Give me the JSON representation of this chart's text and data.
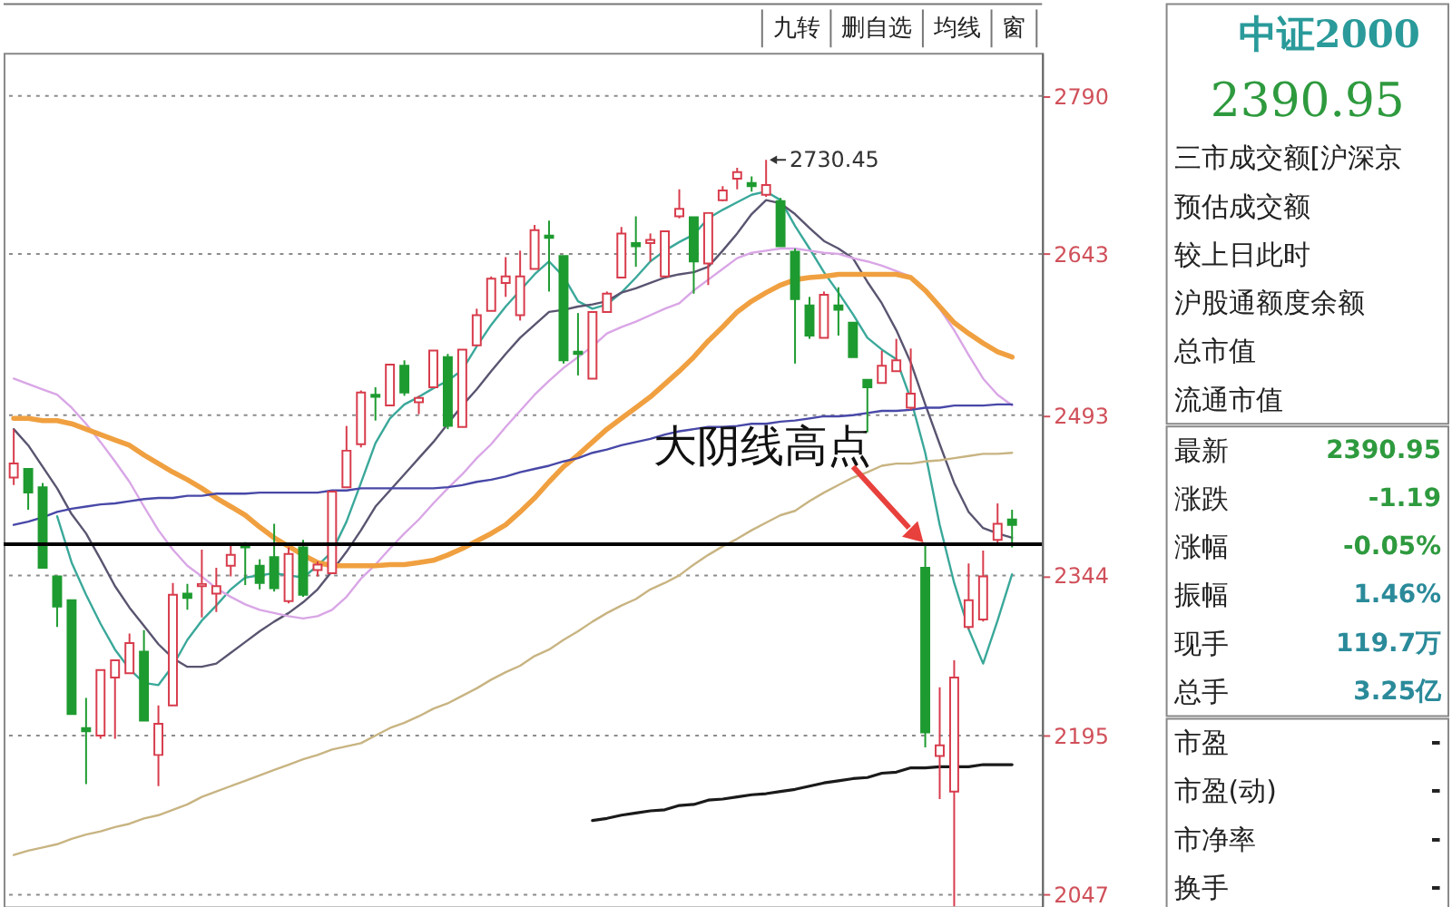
{
  "chart_data": [
    {
      "type": "candlestick",
      "categories": [
        null,
        null,
        null,
        null,
        null,
        null,
        null,
        null,
        null,
        null,
        null,
        null,
        null,
        null,
        null,
        null,
        null,
        null,
        null,
        null,
        null,
        null,
        null,
        null,
        null,
        null,
        null,
        null,
        null,
        null,
        null,
        null,
        null,
        null,
        null,
        null,
        null,
        null,
        null,
        null,
        null,
        null,
        null,
        null,
        null,
        null,
        null,
        null,
        null,
        null,
        null,
        null,
        null,
        null,
        null,
        null,
        null,
        null,
        null,
        null,
        null,
        null,
        null,
        null,
        null,
        null,
        null,
        null,
        null,
        null
      ],
      "ohlc": [
        [
          2435,
          2480,
          2428,
          2448
        ],
        [
          2443,
          2443,
          2405,
          2421
        ],
        [
          2426,
          2430,
          2351,
          2351
        ],
        [
          2343,
          2343,
          2296,
          2315
        ],
        [
          2321,
          2321,
          2215,
          2215
        ],
        [
          2202,
          2230,
          2150,
          2199
        ],
        [
          2195,
          2256,
          2192,
          2256
        ],
        [
          2249,
          2265,
          2192,
          2265
        ],
        [
          2253,
          2290,
          2253,
          2281
        ],
        [
          2273,
          2293,
          2209,
          2209
        ],
        [
          2177,
          2223,
          2148,
          2206
        ],
        [
          2223,
          2337,
          2223,
          2326
        ],
        [
          2327,
          2336,
          2312,
          2323
        ],
        [
          2334,
          2368,
          2305,
          2336
        ],
        [
          2327,
          2351,
          2310,
          2334
        ],
        [
          2353,
          2372,
          2343,
          2363
        ],
        [
          2373,
          2375,
          2335,
          2370
        ],
        [
          2353,
          2359,
          2331,
          2337
        ],
        [
          2361,
          2392,
          2329,
          2332
        ],
        [
          2320,
          2370,
          2318,
          2364
        ],
        [
          2370,
          2377,
          2324,
          2326
        ],
        [
          2349,
          2357,
          2343,
          2354
        ],
        [
          2346,
          2422,
          2346,
          2422
        ],
        [
          2426,
          2483,
          2426,
          2460
        ],
        [
          2466,
          2516,
          2463,
          2514
        ],
        [
          2512,
          2519,
          2488,
          2510
        ],
        [
          2502,
          2540,
          2502,
          2540
        ],
        [
          2539,
          2544,
          2511,
          2514
        ],
        [
          2505,
          2511,
          2494,
          2509
        ],
        [
          2519,
          2553,
          2519,
          2553
        ],
        [
          2547,
          2550,
          2480,
          2483
        ],
        [
          2482,
          2554,
          2482,
          2554
        ],
        [
          2558,
          2592,
          2558,
          2586
        ],
        [
          2590,
          2622,
          2590,
          2620
        ],
        [
          2616,
          2640,
          2603,
          2622
        ],
        [
          2586,
          2646,
          2581,
          2622
        ],
        [
          2629,
          2670,
          2629,
          2665
        ],
        [
          2660,
          2674,
          2608,
          2658
        ],
        [
          2641,
          2641,
          2541,
          2544
        ],
        [
          2552,
          2588,
          2530,
          2550
        ],
        [
          2527,
          2589,
          2527,
          2589
        ],
        [
          2589,
          2608,
          2589,
          2606
        ],
        [
          2621,
          2668,
          2621,
          2662
        ],
        [
          2653,
          2678,
          2631,
          2650
        ],
        [
          2653,
          2662,
          2636,
          2656
        ],
        [
          2622,
          2664,
          2622,
          2664
        ],
        [
          2678,
          2703,
          2676,
          2685
        ],
        [
          2677,
          2677,
          2606,
          2636
        ],
        [
          2634,
          2681,
          2614,
          2681
        ],
        [
          2693,
          2706,
          2692,
          2702
        ],
        [
          2713,
          2723,
          2703,
          2719
        ],
        [
          2709,
          2715,
          2701,
          2706
        ],
        [
          2698,
          2730.45,
          2696,
          2707
        ],
        [
          2692,
          2695,
          2650,
          2650
        ],
        [
          2645,
          2648,
          2541,
          2601
        ],
        [
          2595,
          2603,
          2564,
          2567
        ],
        [
          2565,
          2608,
          2565,
          2605
        ],
        [
          2595,
          2612,
          2567,
          2591
        ],
        [
          2579,
          2579,
          2547,
          2547
        ],
        [
          2526,
          2526,
          2477,
          2519
        ],
        [
          2523,
          2553,
          2523,
          2539
        ],
        [
          2534,
          2564,
          2534,
          2544
        ],
        [
          2500,
          2555,
          2498,
          2513
        ],
        [
          2351,
          2373,
          2184,
          2198
        ],
        [
          2176,
          2240,
          2136,
          2186
        ],
        [
          2143,
          2265,
          2036,
          2249
        ],
        [
          2296,
          2355,
          2294,
          2321
        ],
        [
          2303,
          2367,
          2301,
          2343
        ],
        [
          2377,
          2411,
          2374,
          2392
        ],
        [
          2396,
          2405,
          2370,
          2390.95
        ]
      ],
      "value_labels": [
        null,
        null,
        null,
        null,
        null,
        null,
        null,
        null,
        null,
        null,
        null,
        null,
        null,
        null,
        null,
        null,
        null,
        null,
        null,
        null,
        null,
        null,
        null,
        null,
        null,
        null,
        null,
        null,
        null,
        null,
        null,
        null,
        null,
        null,
        null,
        null,
        null,
        null,
        null,
        null,
        null,
        null,
        null,
        null,
        null,
        null,
        null,
        null,
        null,
        null,
        null,
        null,
        "2730.45",
        null,
        null,
        null,
        null,
        null,
        null,
        null,
        null,
        null,
        null,
        null,
        null,
        null,
        null,
        null,
        null,
        null
      ],
      "colors": [
        "#d83c4c",
        "#1e9b30",
        "#1e9b30",
        "#1e9b30",
        "#1e9b30",
        "#1e9b30",
        "#d83c4c",
        "#d83c4c",
        "#d83c4c",
        "#1e9b30",
        "#d83c4c",
        "#d83c4c",
        "#1e9b30",
        "#d83c4c",
        "#d83c4c",
        "#d83c4c",
        "#1e9b30",
        "#1e9b30",
        "#1e9b30",
        "#d83c4c",
        "#1e9b30",
        "#d83c4c",
        "#d83c4c",
        "#d83c4c",
        "#d83c4c",
        "#1e9b30",
        "#d83c4c",
        "#1e9b30",
        "#d83c4c",
        "#d83c4c",
        "#1e9b30",
        "#d83c4c",
        "#d83c4c",
        "#d83c4c",
        "#d83c4c",
        "#d83c4c",
        "#d83c4c",
        "#1e9b30",
        "#1e9b30",
        "#1e9b30",
        "#d83c4c",
        "#d83c4c",
        "#d83c4c",
        "#1e9b30",
        "#d83c4c",
        "#d83c4c",
        "#d83c4c",
        "#1e9b30",
        "#d83c4c",
        "#d83c4c",
        "#d83c4c",
        "#1e9b30",
        "#d83c4c",
        "#1e9b30",
        "#1e9b30",
        "#1e9b30",
        "#d83c4c",
        "#1e9b30",
        "#1e9b30",
        "#1e9b30",
        "#d83c4c",
        "#d83c4c",
        "#d83c4c",
        "#1e9b30",
        "#d83c4c",
        "#d83c4c",
        "#d83c4c",
        "#d83c4c",
        "#d83c4c",
        "#1e9b30"
      ],
      "series": [
        {
          "type": "line",
          "color": "#3aa89a",
          "values": [
            null,
            null,
            null,
            2399,
            2356,
            2326,
            2299,
            2275,
            2257,
            2244,
            2242,
            2260,
            2284,
            2302,
            2316,
            2331,
            2342,
            2344,
            2346,
            2344,
            2342,
            2353,
            2366,
            2394,
            2430,
            2467,
            2490,
            2503,
            2510,
            2518,
            2525,
            2535,
            2557,
            2577,
            2594,
            2609,
            2624,
            2636,
            2622,
            2599,
            2592,
            2596,
            2607,
            2621,
            2636,
            2646,
            2654,
            2661,
            2676,
            2684,
            2691,
            2698,
            2701,
            2693,
            2669,
            2648,
            2626,
            2607,
            2587,
            2565,
            2554,
            2545,
            2508,
            2458,
            2391,
            2337,
            2294,
            2262,
            2302,
            2345
          ]
        },
        {
          "type": "line",
          "color": "#5a5470",
          "values": [
            2480,
            2465,
            2445,
            2425,
            2401,
            2383,
            2359,
            2334,
            2314,
            2297,
            2280,
            2267,
            2259,
            2259,
            2262,
            2272,
            2282,
            2292,
            2301,
            2309,
            2319,
            2331,
            2348,
            2366,
            2386,
            2408,
            2423,
            2438,
            2453,
            2468,
            2485,
            2502,
            2517,
            2534,
            2550,
            2565,
            2577,
            2589,
            2591,
            2594,
            2596,
            2599,
            2607,
            2611,
            2616,
            2621,
            2624,
            2626,
            2631,
            2646,
            2662,
            2680,
            2693,
            2690,
            2680,
            2667,
            2655,
            2648,
            2639,
            2617,
            2597,
            2572,
            2542,
            2503,
            2466,
            2430,
            2403,
            2388,
            2383,
            2379
          ]
        },
        {
          "type": "line",
          "color": "#d9a6e6",
          "values": [
            2527,
            2522,
            2517,
            2512,
            2500,
            2485,
            2468,
            2450,
            2431,
            2408,
            2386,
            2368,
            2353,
            2343,
            2332,
            2324,
            2317,
            2312,
            2309,
            2306,
            2304,
            2306,
            2312,
            2324,
            2341,
            2354,
            2369,
            2383,
            2396,
            2411,
            2425,
            2438,
            2453,
            2466,
            2482,
            2497,
            2512,
            2525,
            2537,
            2547,
            2557,
            2569,
            2575,
            2580,
            2586,
            2592,
            2597,
            2609,
            2619,
            2629,
            2639,
            2644,
            2646,
            2648,
            2648,
            2646,
            2644,
            2643,
            2639,
            2636,
            2632,
            2627,
            2622,
            2609,
            2592,
            2572,
            2549,
            2527,
            2512,
            2502
          ]
        },
        {
          "type": "line",
          "color": "#f0a040",
          "values": [
            2490,
            2490,
            2488,
            2488,
            2485,
            2480,
            2475,
            2470,
            2465,
            2456,
            2448,
            2440,
            2433,
            2425,
            2416,
            2408,
            2400,
            2389,
            2379,
            2371,
            2363,
            2356,
            2353,
            2353,
            2353,
            2353,
            2354,
            2354,
            2356,
            2358,
            2363,
            2369,
            2376,
            2383,
            2391,
            2403,
            2416,
            2431,
            2445,
            2456,
            2468,
            2480,
            2490,
            2500,
            2510,
            2522,
            2534,
            2547,
            2562,
            2575,
            2589,
            2599,
            2607,
            2614,
            2619,
            2621,
            2622,
            2624,
            2624,
            2624,
            2624,
            2624,
            2621,
            2609,
            2594,
            2579,
            2569,
            2560,
            2552,
            2547
          ]
        },
        {
          "type": "line",
          "color": "#4848a8",
          "values": [
            2391,
            2394,
            2398,
            2403,
            2406,
            2408,
            2410,
            2411,
            2413,
            2415,
            2416,
            2416,
            2418,
            2418,
            2420,
            2420,
            2420,
            2421,
            2421,
            2421,
            2421,
            2421,
            2423,
            2423,
            2425,
            2425,
            2425,
            2425,
            2425,
            2425,
            2426,
            2428,
            2431,
            2433,
            2436,
            2440,
            2443,
            2446,
            2450,
            2453,
            2458,
            2461,
            2465,
            2468,
            2471,
            2475,
            2478,
            2480,
            2482,
            2482,
            2483,
            2485,
            2485,
            2487,
            2488,
            2490,
            2492,
            2492,
            2493,
            2495,
            2497,
            2497,
            2498,
            2500,
            2500,
            2502,
            2502,
            2502,
            2503,
            2503
          ]
        },
        {
          "type": "line",
          "color": "#c8b482",
          "values": [
            2084,
            2088,
            2091,
            2094,
            2099,
            2103,
            2106,
            2110,
            2113,
            2118,
            2121,
            2126,
            2131,
            2138,
            2143,
            2148,
            2153,
            2158,
            2163,
            2168,
            2173,
            2177,
            2182,
            2185,
            2188,
            2195,
            2202,
            2207,
            2213,
            2220,
            2225,
            2232,
            2239,
            2247,
            2254,
            2260,
            2269,
            2275,
            2284,
            2292,
            2301,
            2309,
            2316,
            2322,
            2331,
            2337,
            2344,
            2354,
            2363,
            2371,
            2378,
            2386,
            2393,
            2400,
            2404,
            2413,
            2421,
            2428,
            2435,
            2440,
            2446,
            2448,
            2448,
            2450,
            2451,
            2453,
            2455,
            2457,
            2457,
            2458
          ]
        },
        {
          "type": "line",
          "color": "#1a1a1a",
          "values": [
            null,
            null,
            null,
            null,
            null,
            null,
            null,
            null,
            null,
            null,
            null,
            null,
            null,
            null,
            null,
            null,
            null,
            null,
            null,
            null,
            null,
            null,
            null,
            null,
            null,
            null,
            null,
            null,
            null,
            null,
            null,
            null,
            null,
            null,
            null,
            null,
            null,
            null,
            null,
            null,
            2116,
            2118,
            2121,
            2123,
            2125,
            2126,
            2130,
            2131,
            2135,
            2136,
            2138,
            2140,
            2141,
            2143,
            2145,
            2148,
            2151,
            2153,
            2155,
            2156,
            2160,
            2161,
            2165,
            2165,
            2166,
            2166,
            2166,
            2168,
            2168,
            2168
          ]
        }
      ],
      "ylim": [
        2036,
        2830
      ],
      "yticks": [
        2047,
        2195,
        2344,
        2493,
        2643,
        2790
      ],
      "grid": "y",
      "tick_labels": "y",
      "ref_lines": [
        {
          "axis": "y",
          "value": 2373,
          "color": "#000000"
        }
      ],
      "annotations": [
        {
          "text": "大阴线高点",
          "y": 2373
        },
        "九转",
        "删自选",
        "均线",
        "窗"
      ]
    },
    {
      "type": "other",
      "title": "中证2000",
      "subtitle": "2390.95",
      "categories": [
        "三市成交额[沪深京",
        "预估成交额",
        "较上日此时",
        "沪股通额度余额",
        "总市值",
        "流通市值"
      ]
    },
    {
      "type": "other",
      "categories": [
        "最新",
        "涨跌",
        "涨幅",
        "振幅",
        "现手",
        "总手"
      ],
      "value_labels": [
        "2390.95",
        "-1.19",
        "-0.05%",
        "1.46%",
        "119.7万",
        "3.25亿"
      ],
      "colors": [
        "#2e9a3e",
        "#2e9a3e",
        "#2e9a3e",
        "#2a8a9a",
        "#2a8a9a",
        "#2a8a9a"
      ]
    },
    {
      "type": "other",
      "categories": [
        "市盈",
        "市盈(动)",
        "市净率",
        "换手"
      ],
      "value_labels": [
        "-",
        "-",
        "-",
        "-"
      ]
    }
  ]
}
